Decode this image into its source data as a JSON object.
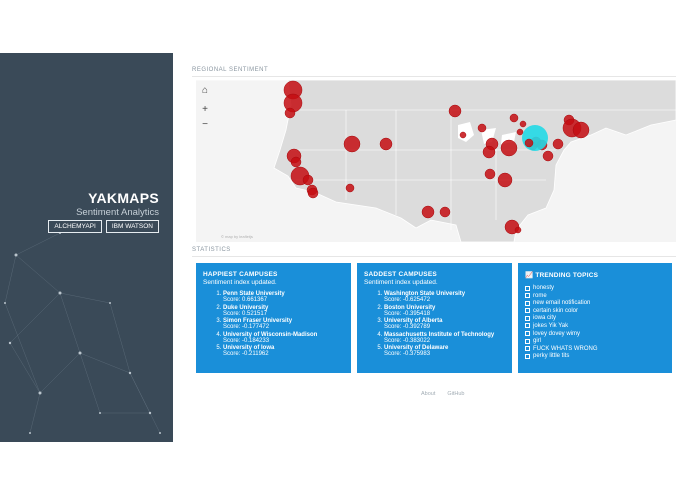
{
  "sidebar": {
    "title": "YAKMAPS",
    "subtitle": "Sentiment Analytics",
    "buttons": [
      "ALCHEMYAPI",
      "IBM WATSON"
    ]
  },
  "regional": {
    "label": "REGIONAL SENTIMENT",
    "attribution": "© map by leafletjs",
    "controls": {
      "home": "⌂",
      "zoom_in": "+",
      "zoom_out": "−"
    }
  },
  "statistics": {
    "label": "STATISTICS"
  },
  "happiest": {
    "title": "HAPPIEST CAMPUSES",
    "status": "Sentiment index updated.",
    "items": [
      {
        "name": "Penn State University",
        "score": "Score: 0.661367"
      },
      {
        "name": "Duke University",
        "score": "Score: 0.521517"
      },
      {
        "name": "Simon Fraser University",
        "score": "Score: -0.177472"
      },
      {
        "name": "University of Wisconsin-Madison",
        "score": "Score: -0.184233"
      },
      {
        "name": "University of Iowa",
        "score": "Score: -0.211962"
      }
    ]
  },
  "saddest": {
    "title": "SADDEST CAMPUSES",
    "status": "Sentiment index updated.",
    "items": [
      {
        "name": "Washington State University",
        "score": "Score: -0.625472"
      },
      {
        "name": "Boston University",
        "score": "Score: -0.395418"
      },
      {
        "name": "University of Alberta",
        "score": "Score: -0.392789"
      },
      {
        "name": "Massachusetts Institute of Technology",
        "score": "Score: -0.383022"
      },
      {
        "name": "University of Delaware",
        "score": "Score: -0.375983"
      }
    ]
  },
  "trending": {
    "title": "TRENDING TOPICS",
    "items": [
      "honesty",
      "rome",
      "new email notification",
      "certain skin color",
      "iowa city",
      "jokes Yik Yak",
      "lovey dovey wimy",
      "girl",
      "FUCK WHATS WRONG",
      "perky little tits"
    ]
  },
  "footer": {
    "about": "About",
    "github": "GitHub"
  },
  "colors": {
    "sidebar": "#3a4a58",
    "card": "#1a8fd9",
    "marker": "#c40d12",
    "highlight": "#22d9e6",
    "land": "#dcdcdc"
  }
}
